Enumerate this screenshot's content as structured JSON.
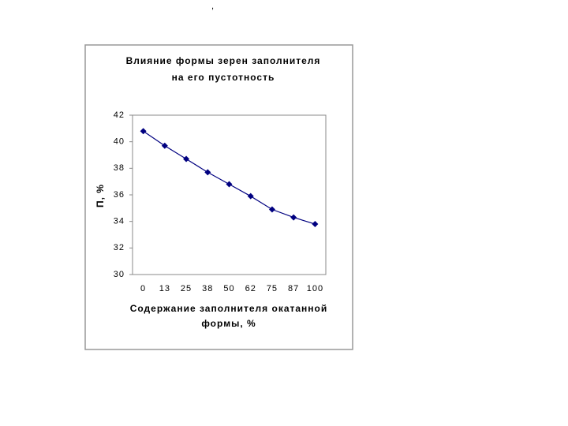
{
  "note": ",",
  "chart_data": {
    "type": "line",
    "title": [
      "Влияние формы зерен заполнителя",
      "на его пустотность"
    ],
    "y_label": "П, %",
    "x_label": [
      "Содержание заполнителя окатанной",
      "формы, %"
    ],
    "categories": [
      "0",
      "13",
      "25",
      "38",
      "50",
      "62",
      "75",
      "87",
      "100"
    ],
    "values": [
      40.8,
      39.7,
      38.7,
      37.7,
      36.8,
      35.9,
      34.9,
      34.3,
      33.8
    ],
    "color": "#000080",
    "ylim": [
      30,
      42
    ],
    "yticks": [
      30,
      32,
      34,
      36,
      38,
      40,
      42
    ],
    "grid": false
  }
}
